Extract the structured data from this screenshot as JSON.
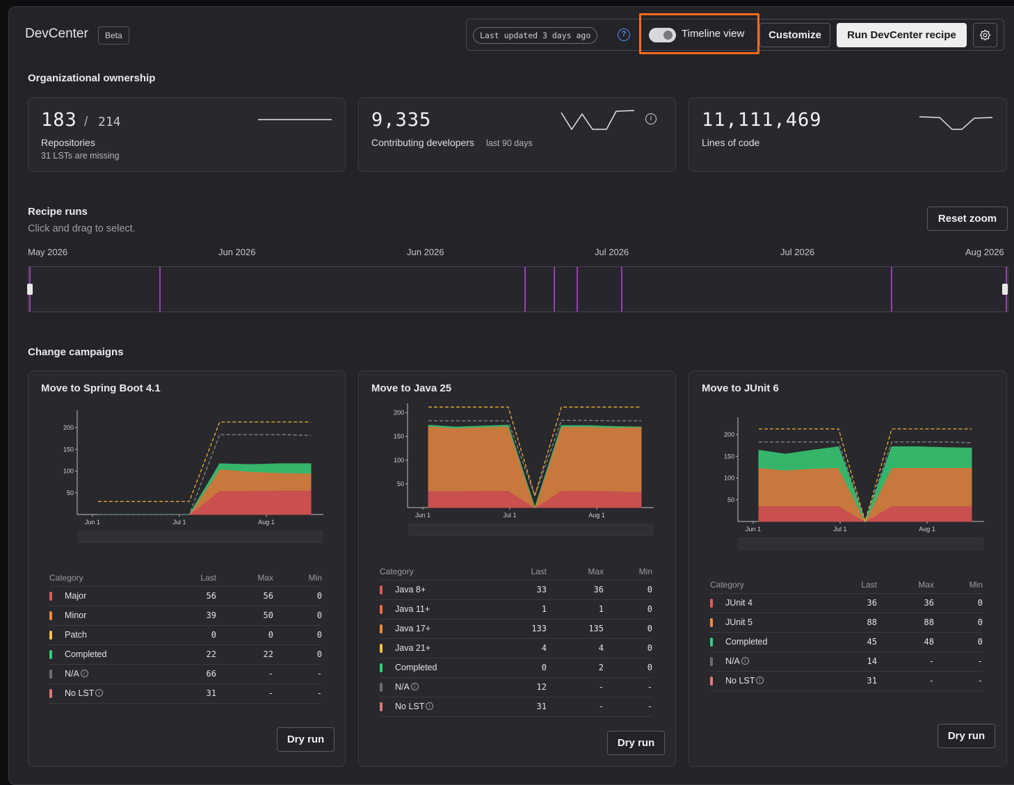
{
  "header": {
    "brand": "DevCenter",
    "badge": "Beta",
    "last_updated": "Last updated 3 days ago",
    "help_icon": "?",
    "timeline_toggle_label": "Timeline view",
    "timeline_toggle_on": true,
    "customize_label": "Customize",
    "run_label": "Run DevCenter recipe",
    "accent_highlight": "#ff6a1f"
  },
  "ownership": {
    "title": "Organizational ownership",
    "repos": {
      "value": "183",
      "sep": "/",
      "total": "214",
      "label": "Repositories",
      "note": "31 LSTs are missing"
    },
    "devs": {
      "value": "9,335",
      "label": "Contributing developers",
      "note": "last 90 days"
    },
    "loc": {
      "value": "11,111,469",
      "label": "Lines of code"
    }
  },
  "recipe_runs": {
    "title": "Recipe runs",
    "hint": "Click and drag to select.",
    "reset_label": "Reset zoom",
    "axis_labels": [
      "May 2026",
      "Jun 2026",
      "Jun 2026",
      "Jul 2026",
      "Jul 2026",
      "Aug 2026"
    ],
    "run_marker_color": "#9b3fb5"
  },
  "campaigns": {
    "title": "Change campaigns",
    "columns": [
      "Category",
      "Last",
      "Max",
      "Min"
    ],
    "dry_run_label": "Dry run",
    "items": [
      {
        "title": "Move to Spring Boot 4.1",
        "rows": [
          {
            "label": "Major",
            "last": "56",
            "max": "56",
            "min": "0",
            "color": "#e05a5a"
          },
          {
            "label": "Minor",
            "last": "39",
            "max": "50",
            "min": "0",
            "color": "#f08a3c"
          },
          {
            "label": "Patch",
            "last": "0",
            "max": "0",
            "min": "0",
            "color": "#f5c242"
          },
          {
            "label": "Completed",
            "last": "22",
            "max": "22",
            "min": "0",
            "color": "#2fd17a"
          },
          {
            "label": "N/A",
            "last": "66",
            "max": "-",
            "min": "-",
            "color": "#6c6c72",
            "info": true
          },
          {
            "label": "No LST",
            "last": "31",
            "max": "-",
            "min": "-",
            "color": "#e07a7a",
            "info": true
          }
        ]
      },
      {
        "title": "Move to Java 25",
        "rows": [
          {
            "label": "Java 8+",
            "last": "33",
            "max": "36",
            "min": "0",
            "color": "#e05a5a"
          },
          {
            "label": "Java 11+",
            "last": "1",
            "max": "1",
            "min": "0",
            "color": "#f0703c"
          },
          {
            "label": "Java 17+",
            "last": "133",
            "max": "135",
            "min": "0",
            "color": "#f08a3c"
          },
          {
            "label": "Java 21+",
            "last": "4",
            "max": "4",
            "min": "0",
            "color": "#f5c242"
          },
          {
            "label": "Completed",
            "last": "0",
            "max": "2",
            "min": "0",
            "color": "#2fd17a"
          },
          {
            "label": "N/A",
            "last": "12",
            "max": "-",
            "min": "-",
            "color": "#6c6c72",
            "info": true
          },
          {
            "label": "No LST",
            "last": "31",
            "max": "-",
            "min": "-",
            "color": "#e07a7a",
            "info": true
          }
        ]
      },
      {
        "title": "Move to JUnit 6",
        "rows": [
          {
            "label": "JUnit 4",
            "last": "36",
            "max": "36",
            "min": "0",
            "color": "#e05a5a"
          },
          {
            "label": "JUnit 5",
            "last": "88",
            "max": "88",
            "min": "0",
            "color": "#f08a3c"
          },
          {
            "label": "Completed",
            "last": "45",
            "max": "48",
            "min": "0",
            "color": "#2fd17a"
          },
          {
            "label": "N/A",
            "last": "14",
            "max": "-",
            "min": "-",
            "color": "#6c6c72",
            "info": true
          },
          {
            "label": "No LST",
            "last": "31",
            "max": "-",
            "min": "-",
            "color": "#e07a7a",
            "info": true
          }
        ]
      }
    ],
    "chart_axis": {
      "x_ticks": [
        "Jun 1",
        "Jul 1",
        "Aug 1"
      ],
      "y_ticks": [
        "50",
        "100",
        "150",
        "200"
      ]
    }
  },
  "chart_data": [
    {
      "type": "area",
      "title": "Move to Spring Boot 4.1",
      "ylim": [
        0,
        240
      ],
      "x_ticks": [
        "Jun 1",
        "Jul 1",
        "Aug 1"
      ],
      "series": [
        {
          "name": "Major",
          "values": [
            0,
            0,
            0,
            0,
            55,
            55,
            56,
            56
          ],
          "color": "#c9504f"
        },
        {
          "name": "Minor",
          "values": [
            0,
            0,
            0,
            0,
            50,
            44,
            40,
            39
          ],
          "color": "#c8783d"
        },
        {
          "name": "Completed",
          "values": [
            0,
            0,
            0,
            0,
            12,
            16,
            21,
            22
          ],
          "color": "#35b56a"
        }
      ],
      "total_line": [
        30,
        30,
        30,
        30,
        213,
        213,
        213,
        213
      ],
      "scope_line": [
        0,
        0,
        0,
        0,
        184,
        184,
        184,
        182
      ]
    },
    {
      "type": "area",
      "title": "Move to Java 25",
      "ylim": [
        0,
        220
      ],
      "x_ticks": [
        "Jun 1",
        "Jul 1",
        "Aug 1"
      ],
      "series": [
        {
          "name": "Java 8+",
          "values": [
            35,
            35,
            36,
            36,
            0,
            36,
            36,
            35,
            33
          ],
          "color": "#c9504f"
        },
        {
          "name": "Java 11+/17+/21+",
          "values": [
            137,
            133,
            134,
            136,
            0,
            135,
            135,
            134,
            137
          ],
          "color": "#c8783d"
        },
        {
          "name": "Completed",
          "values": [
            2,
            2,
            2,
            2,
            0,
            2,
            2,
            2,
            0
          ],
          "color": "#35b56a"
        }
      ],
      "total_line": [
        212,
        212,
        212,
        212,
        25,
        212,
        212,
        212,
        212
      ],
      "scope_line": [
        183,
        183,
        183,
        183,
        25,
        184,
        184,
        183,
        183
      ]
    },
    {
      "type": "area",
      "title": "Move to JUnit 6",
      "ylim": [
        0,
        240
      ],
      "x_ticks": [
        "Jun 1",
        "Jul 1",
        "Aug 1"
      ],
      "series": [
        {
          "name": "JUnit 4",
          "values": [
            36,
            36,
            36,
            36,
            0,
            36,
            36,
            36,
            36
          ],
          "color": "#c9504f"
        },
        {
          "name": "JUnit 5",
          "values": [
            88,
            82,
            86,
            88,
            0,
            88,
            88,
            88,
            88
          ],
          "color": "#c8783d"
        },
        {
          "name": "Completed",
          "values": [
            40,
            37,
            42,
            48,
            0,
            48,
            48,
            46,
            45
          ],
          "color": "#35b56a"
        }
      ],
      "total_line": [
        213,
        213,
        213,
        213,
        0,
        213,
        213,
        213,
        213
      ],
      "scope_line": [
        183,
        183,
        183,
        183,
        0,
        183,
        183,
        183,
        181
      ]
    }
  ]
}
